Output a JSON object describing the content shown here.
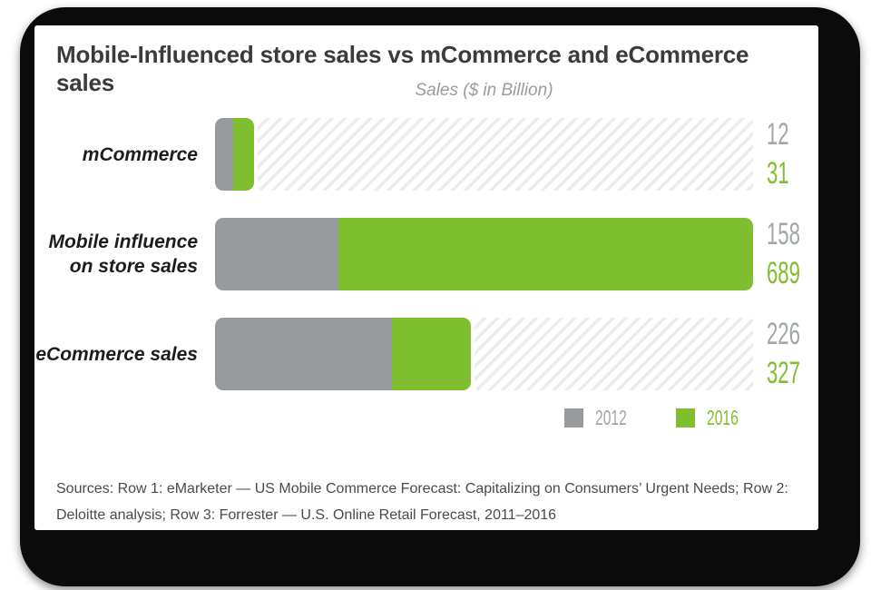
{
  "chart_data": {
    "type": "bar",
    "orientation": "horizontal",
    "title": "Mobile-Influenced store sales vs mCommerce and eCommerce sales",
    "axis_label": "Sales ($ in Billion)",
    "categories": [
      "mCommerce",
      "Mobile influence on store sales",
      "eCommerce sales"
    ],
    "series": [
      {
        "name": "2012",
        "color": "#979b9e",
        "values": [
          12,
          158,
          226
        ]
      },
      {
        "name": "2016",
        "color": "#7fbe2e",
        "values": [
          31,
          689,
          327
        ]
      }
    ],
    "xlim": [
      0,
      689
    ],
    "grid": false,
    "legend_position": "bottom-right",
    "value_labels_position": "right",
    "notes": "2016 segment extends beyond 2012 value; unfilled remainder of scale drawn as light diagonal hatch"
  },
  "row_labels": [
    [
      "mCommerce"
    ],
    [
      "Mobile influence",
      "on store sales"
    ],
    [
      "eCommerce sales"
    ]
  ],
  "style": {
    "bar_2012_color": "#979b9e",
    "bar_2016_color": "#7fbe2e",
    "value_text_2012": "#a1a6a8",
    "value_text_2016": "#7fbe2e",
    "hatch_stripe": "#ececec",
    "title_color": "#3b3b3b",
    "subtitle_color": "#9b9b9b",
    "label_color": "#1d1d1b",
    "sources_color": "#4a4a4a"
  },
  "sources": {
    "line1": "Sources: Row 1: eMarketer — US Mobile Commerce Forecast: Capitalizing on Consumers’ Urgent Needs; Row 2:",
    "line2": "Deloitte analysis; Row 3: Forrester — U.S. Online Retail Forecast, 2011–2016"
  }
}
